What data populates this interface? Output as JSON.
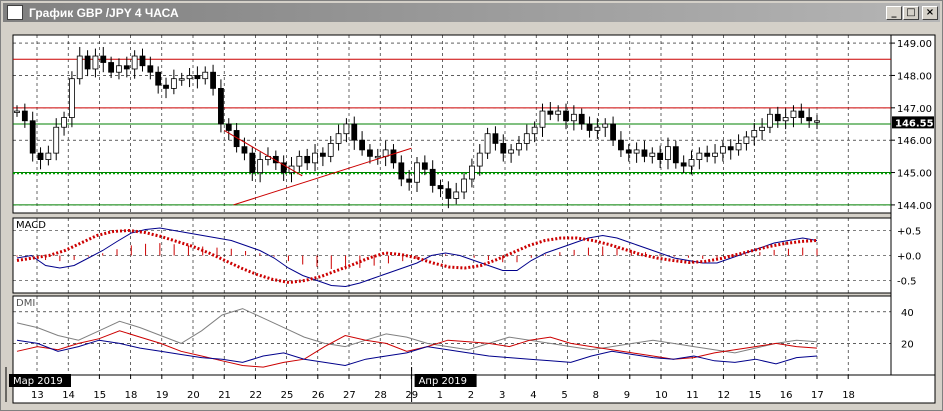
{
  "window": {
    "title": "График GBP /JPY  4 ЧАСА",
    "buttons": {
      "minimize": "_",
      "maximize": "□",
      "close": "×"
    }
  },
  "chart_data": {
    "type": "candlestick",
    "symbol": "GBP/JPY",
    "timeframe": "4 ЧАСА",
    "current_price": 146.55,
    "price_axis": {
      "ylim": [
        143.75,
        149.25
      ],
      "ticks": [
        149.0,
        148.0,
        147.0,
        146.0,
        145.0,
        144.0
      ],
      "tick_labels": [
        "149.00",
        "148.00",
        "147.00",
        "146.00",
        "145.00",
        "144.00"
      ],
      "current_label": "146.55"
    },
    "levels": {
      "red": [
        148.5,
        147.0
      ],
      "green": [
        146.5,
        145.0,
        144.0
      ],
      "green_dotted": [
        145.0
      ]
    },
    "trendlines": [
      {
        "color": "#cc0000",
        "points": [
          [
            21.0,
            146.3
          ],
          [
            25.5,
            144.9
          ]
        ]
      },
      {
        "color": "#cc0000",
        "points": [
          [
            21.3,
            144.0
          ],
          [
            29.0,
            145.75
          ]
        ]
      }
    ],
    "x_axis": {
      "day_labels": [
        "13",
        "14",
        "15",
        "18",
        "19",
        "20",
        "21",
        "22",
        "25",
        "26",
        "27",
        "28",
        "29",
        "1",
        "2",
        "3",
        "4",
        "5",
        "8",
        "9",
        "10",
        "11",
        "12",
        "15",
        "16",
        "17",
        "18"
      ],
      "month_labels": [
        {
          "label": "Мар 2019",
          "at": "13"
        },
        {
          "label": "Апр 2019",
          "at": "1"
        }
      ],
      "grid": "dashed"
    },
    "candles_close": [
      146.9,
      146.6,
      145.6,
      145.4,
      145.6,
      146.4,
      146.7,
      147.9,
      148.6,
      148.2,
      148.6,
      148.4,
      148.1,
      148.3,
      148.2,
      148.6,
      148.3,
      148.1,
      147.7,
      147.6,
      147.9,
      147.9,
      148.0,
      147.9,
      148.1,
      147.6,
      146.5,
      146.3,
      145.8,
      145.6,
      145.0,
      145.4,
      145.5,
      145.3,
      145.0,
      145.2,
      145.5,
      145.3,
      145.6,
      145.5,
      145.9,
      146.2,
      146.5,
      146.0,
      145.7,
      145.5,
      145.5,
      145.7,
      145.3,
      144.8,
      144.7,
      145.3,
      145.1,
      144.6,
      144.5,
      144.2,
      144.4,
      144.8,
      145.2,
      145.6,
      146.2,
      145.9,
      145.6,
      145.7,
      145.9,
      146.2,
      146.4,
      146.9,
      146.8,
      146.9,
      146.6,
      146.8,
      146.5,
      146.3,
      146.4,
      146.5,
      146.0,
      145.7,
      145.6,
      145.7,
      145.5,
      145.6,
      145.4,
      145.8,
      145.3,
      145.2,
      145.4,
      145.6,
      145.5,
      145.6,
      145.8,
      145.7,
      145.9,
      146.1,
      146.3,
      146.4,
      146.8,
      146.6,
      146.7,
      146.9,
      146.7,
      146.6,
      146.6
    ],
    "macd": {
      "name": "MACD",
      "ylim": [
        -0.75,
        0.75
      ],
      "ticks": [
        0.5,
        0.0,
        -0.5
      ],
      "tick_labels": [
        "+0.5",
        "+0.0",
        "-0.5"
      ],
      "line_main": [
        -0.05,
        0.0,
        -0.2,
        -0.25,
        -0.2,
        -0.05,
        0.1,
        0.28,
        0.45,
        0.52,
        0.55,
        0.5,
        0.45,
        0.4,
        0.35,
        0.3,
        0.2,
        0.1,
        -0.05,
        -0.25,
        -0.4,
        -0.5,
        -0.6,
        -0.62,
        -0.55,
        -0.45,
        -0.35,
        -0.25,
        -0.15,
        0.0,
        0.05,
        0.0,
        -0.1,
        -0.2,
        -0.3,
        -0.3,
        -0.1,
        0.05,
        0.15,
        0.25,
        0.35,
        0.4,
        0.35,
        0.25,
        0.15,
        0.05,
        -0.05,
        -0.1,
        -0.15,
        -0.15,
        -0.05,
        0.05,
        0.15,
        0.25,
        0.3,
        0.35,
        0.3
      ],
      "line_signal": [
        -0.1,
        -0.05,
        0.0,
        0.1,
        0.25,
        0.4,
        0.48,
        0.5,
        0.46,
        0.38,
        0.28,
        0.18,
        0.05,
        -0.1,
        -0.25,
        -0.38,
        -0.48,
        -0.54,
        -0.5,
        -0.42,
        -0.3,
        -0.18,
        -0.05,
        0.05,
        0.02,
        -0.05,
        -0.15,
        -0.23,
        -0.25,
        -0.2,
        -0.08,
        0.06,
        0.2,
        0.3,
        0.35,
        0.35,
        0.3,
        0.22,
        0.12,
        0.02,
        -0.05,
        -0.1,
        -0.14,
        -0.12,
        -0.06,
        0.02,
        0.1,
        0.18,
        0.24,
        0.28,
        0.3
      ]
    },
    "dmi": {
      "name": "DMI",
      "ylim": [
        0,
        50
      ],
      "ticks": [
        40,
        20
      ],
      "tick_labels": [
        "40",
        "20"
      ],
      "plus_di_blue": [
        22,
        20,
        15,
        18,
        22,
        20,
        17,
        15,
        13,
        11,
        10,
        8,
        12,
        14,
        10,
        8,
        6,
        10,
        12,
        14,
        18,
        16,
        14,
        12,
        11,
        10,
        9,
        8,
        12,
        15,
        13,
        11,
        10,
        12,
        9,
        8,
        10,
        7,
        11,
        12
      ],
      "minus_di_red": [
        15,
        18,
        16,
        20,
        23,
        28,
        24,
        20,
        15,
        12,
        9,
        6,
        5,
        8,
        10,
        18,
        25,
        22,
        20,
        15,
        18,
        22,
        21,
        20,
        18,
        22,
        24,
        20,
        18,
        16,
        14,
        12,
        10,
        11,
        14,
        16,
        18,
        20,
        18,
        17
      ],
      "adx_gray": [
        33,
        30,
        25,
        22,
        28,
        34,
        30,
        25,
        20,
        28,
        38,
        42,
        36,
        30,
        24,
        20,
        18,
        22,
        26,
        24,
        20,
        18,
        16,
        20,
        24,
        22,
        20,
        18,
        16,
        18,
        20,
        22,
        20,
        18,
        16,
        14,
        17,
        20,
        22,
        21
      ]
    }
  }
}
